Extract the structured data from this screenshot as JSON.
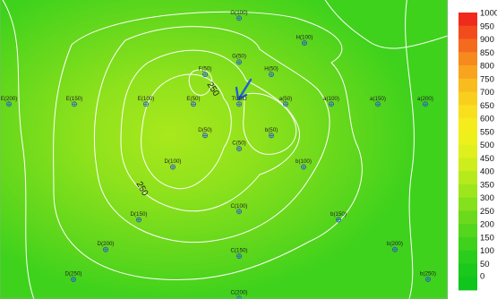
{
  "chart_data": {
    "type": "contour",
    "title": "",
    "xlabel": "",
    "ylabel": "",
    "colorbar": {
      "values": [
        "1000",
        "950",
        "900",
        "850",
        "800",
        "750",
        "700",
        "650",
        "600",
        "550",
        "500",
        "450",
        "400",
        "350",
        "300",
        "250",
        "200",
        "150",
        "100",
        "50",
        "0"
      ],
      "colors": [
        "#f02a1c",
        "#f34c1c",
        "#f56b1e",
        "#f78a1e",
        "#f8a41e",
        "#f9bc1e",
        "#f9cf1e",
        "#f8e01e",
        "#f5ec1e",
        "#eef01c",
        "#e0f01c",
        "#cdee1c",
        "#b7ea1c",
        "#9de61c",
        "#84e11c",
        "#6bda1c",
        "#54d61c",
        "#3fd21c",
        "#2bcd1c",
        "#1ac91c",
        "#10c61c"
      ]
    },
    "contour_labels": [
      "250",
      "250"
    ],
    "annotation": {
      "type": "arrow",
      "color": "#1f5fd8"
    },
    "stations": [
      {
        "name": "G(100)"
      },
      {
        "name": "H(100)"
      },
      {
        "name": "G(50)"
      },
      {
        "name": "F(50)"
      },
      {
        "name": "H(50)"
      },
      {
        "name": "E(200)"
      },
      {
        "name": "E(150)"
      },
      {
        "name": "E(100)"
      },
      {
        "name": "E(50)"
      },
      {
        "name": "TUBO"
      },
      {
        "name": "a(50)"
      },
      {
        "name": "a(100)"
      },
      {
        "name": "a(150)"
      },
      {
        "name": "a(200)"
      },
      {
        "name": "D(50)"
      },
      {
        "name": "b(50)"
      },
      {
        "name": "C(50)"
      },
      {
        "name": "D(100)"
      },
      {
        "name": "b(100)"
      },
      {
        "name": "C(100)"
      },
      {
        "name": "D(150)"
      },
      {
        "name": "b(150)"
      },
      {
        "name": "D(200)"
      },
      {
        "name": "C(150)"
      },
      {
        "name": "b(200)"
      },
      {
        "name": "D(250)"
      },
      {
        "name": "b(250)"
      },
      {
        "name": "C(200)"
      }
    ]
  }
}
